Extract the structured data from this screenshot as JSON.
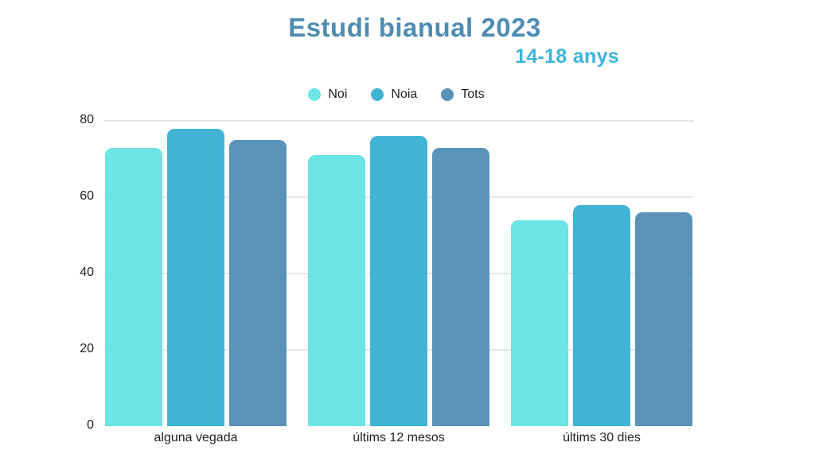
{
  "title": "Estudi bianual 2023",
  "subtitle": "14-18 anys",
  "colors": {
    "title": "#4E8CB2",
    "subtitle": "#3CB5DC",
    "grid": "#E6E6E6",
    "axis_text": "#222222",
    "noi": "#6DE4E6",
    "noia": "#41B4D6",
    "tots": "#5A93B8"
  },
  "legend": [
    {
      "label": "Noi",
      "color": "#6DE4E6"
    },
    {
      "label": "Noia",
      "color": "#41B4D6"
    },
    {
      "label": "Tots",
      "color": "#5A93B8"
    }
  ],
  "chart_data": {
    "type": "bar",
    "title": "Estudi bianual 2023",
    "subtitle": "14-18 anys",
    "categories": [
      "alguna vegada",
      "últims 12 mesos",
      "últims 30 dies"
    ],
    "series": [
      {
        "name": "Noi",
        "color": "#6DE4E6",
        "values": [
          73,
          71,
          54
        ]
      },
      {
        "name": "Noia",
        "color": "#41B4D6",
        "values": [
          78,
          76,
          58
        ]
      },
      {
        "name": "Tots",
        "color": "#5A93B8",
        "values": [
          75,
          73,
          56
        ]
      }
    ],
    "ylim": [
      0,
      80
    ],
    "yticks": [
      0,
      20,
      40,
      60,
      80
    ],
    "grid": true,
    "legend_position": "top-center"
  }
}
